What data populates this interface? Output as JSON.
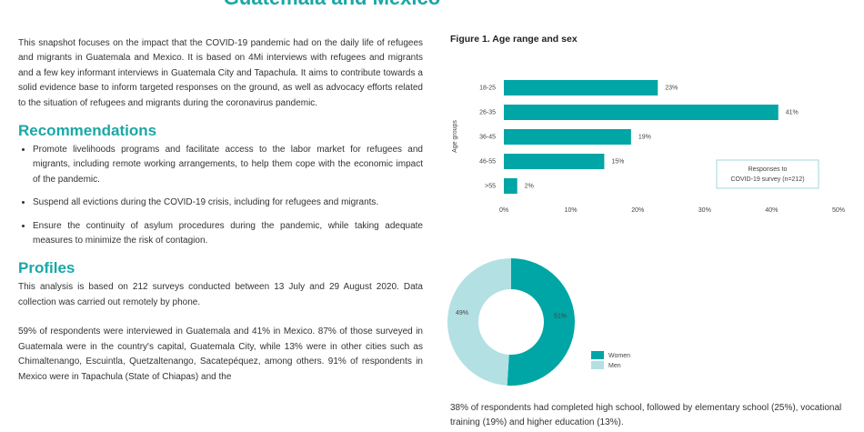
{
  "header": {
    "title": "Guatemala and Mexico"
  },
  "intro": "This snapshot focuses on the impact that the COVID-19 pandemic had on the daily life of refugees and migrants in Guatemala and Mexico. It is based on 4Mi interviews with refugees and migrants and a few key informant interviews in Guatemala City and Tapachula. It aims to contribute towards a solid evidence base to inform targeted responses on the ground, as well as advocacy efforts related to the situation of refugees and migrants during the coronavirus pandemic.",
  "recommendations": {
    "heading": "Recommendations",
    "items": [
      "Promote livelihoods programs and facilitate access to the labor market for refugees and migrants, including remote working arrangements, to help them cope with the economic impact of the pandemic.",
      "Suspend all evictions during the COVID-19 crisis, including for refugees and migrants.",
      "Ensure the continuity of asylum procedures during the pandemic, while taking adequate measures to minimize the risk of contagion."
    ]
  },
  "profiles": {
    "heading": "Profiles",
    "paragraphs": [
      "This analysis is based on 212 surveys conducted between 13 July and 29 August 2020. Data collection was carried out remotely by phone.",
      "59% of respondents were interviewed in Guatemala and 41% in Mexico. 87% of those surveyed in Guatemala were in the country's capital, Guatemala City, while 13% were in other cities such as Chimaltenango, Escuintla, Quetzaltenango, Sacatepéquez, among others. 91% of respondents in Mexico were in Tapachula (State of Chiapas) and the"
    ]
  },
  "figure": {
    "caption": "Figure 1. Age range and sex"
  },
  "education_text": "38% of respondents had completed high school, followed by elementary school (25%), vocational training (19%) and higher education (13%).",
  "chart_data": [
    {
      "type": "bar",
      "orientation": "horizontal",
      "y_label": "Age groups",
      "categories": [
        "18-25",
        "26-35",
        "36-45",
        "46-55",
        ">55"
      ],
      "values": [
        23,
        41,
        19,
        15,
        2
      ],
      "value_labels": [
        "23%",
        "41%",
        "19%",
        "15%",
        "2%"
      ],
      "color": "#00a5a5",
      "xlim": [
        0,
        50
      ],
      "xticks": [
        {
          "value": 0,
          "label": "0%"
        },
        {
          "value": 10,
          "label": "10%"
        },
        {
          "value": 20,
          "label": "20%"
        },
        {
          "value": 30,
          "label": "30%"
        },
        {
          "value": 40,
          "label": "40%"
        },
        {
          "value": 50,
          "label": "50%"
        }
      ],
      "annotation": [
        "Responses to",
        "COVID-19 survey (n=212)"
      ]
    },
    {
      "type": "pie",
      "donut": true,
      "categories": [
        "Women",
        "Men"
      ],
      "values": [
        51,
        49
      ],
      "value_labels": [
        "51%",
        "49%"
      ],
      "colors": [
        "#00a5a5",
        "#b2e0e3"
      ]
    }
  ]
}
